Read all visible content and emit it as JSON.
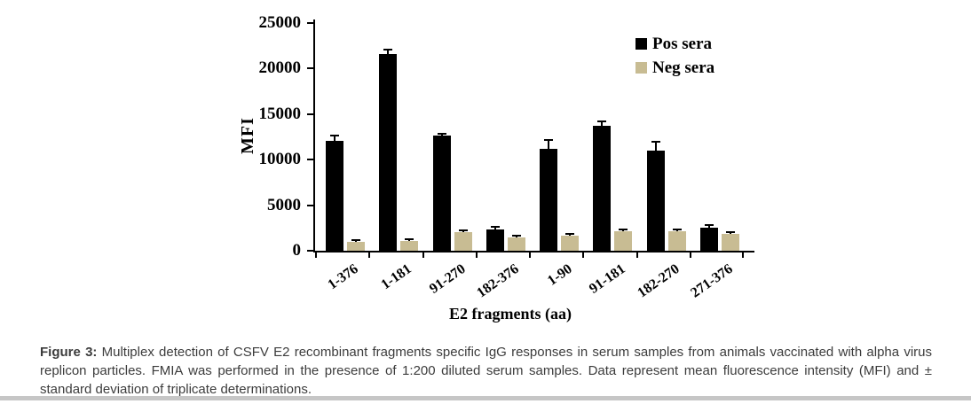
{
  "chart_data": {
    "type": "bar",
    "title": "",
    "xlabel": "E2 fragments (aa)",
    "ylabel": "MFI",
    "ylim": [
      0,
      25000
    ],
    "ytick_step": 5000,
    "yticks": [
      "0",
      "5000",
      "10000",
      "15000",
      "20000",
      "25000"
    ],
    "grid": false,
    "legend_position": "top-right",
    "categories": [
      "1-376",
      "1-181",
      "91-270",
      "182-376",
      "1-90",
      "91-181",
      "182-270",
      "271-376"
    ],
    "series": [
      {
        "name": "Pos sera",
        "color": "#000000",
        "values": [
          12100,
          21600,
          12600,
          2300,
          11200,
          13700,
          11000,
          2500
        ],
        "sd": [
          600,
          500,
          200,
          250,
          1000,
          500,
          1000,
          300
        ]
      },
      {
        "name": "Neg sera",
        "color": "#c8bc93",
        "values": [
          1000,
          1100,
          2050,
          1450,
          1650,
          2150,
          2100,
          1800
        ],
        "sd": [
          120,
          150,
          100,
          120,
          200,
          150,
          150,
          150
        ]
      }
    ]
  },
  "caption": {
    "label": "Figure 3:",
    "text": "Multiplex detection of CSFV E2 recombinant fragments specific IgG responses in serum samples from animals vaccinated with alpha virus replicon particles.  FMIA was performed in the presence of 1:200 diluted serum samples. Data represent mean fluorescence intensity (MFI) and ± standard deviation of triplicate determinations."
  }
}
